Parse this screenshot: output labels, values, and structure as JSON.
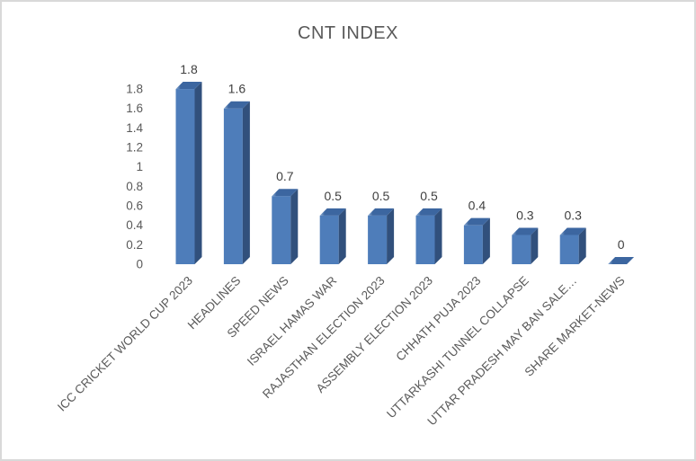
{
  "window": {
    "background": "#FFFFFF",
    "border_color": "#D9D9D9"
  },
  "chart_data": {
    "type": "bar",
    "style": "3d-column",
    "title": "CNT INDEX",
    "categories": [
      "ICC CRICKET WORLD CUP 2023",
      "HEADLINES",
      "SPEED NEWS",
      "ISRAEL HAMAS WAR",
      "RAJASTHAN ELECTION 2023",
      "ASSEMBLY ELECTION 2023",
      "CHHATH PUJA 2023",
      "UTTARKASHI TUNNEL COLLAPSE",
      "UTTAR PRADESH MAY BAN SALE…",
      "SHARE MARKET-NEWS"
    ],
    "values": [
      1.8,
      1.6,
      0.7,
      0.5,
      0.5,
      0.5,
      0.4,
      0.3,
      0.3,
      0
    ],
    "data_labels": [
      "1.8",
      "1.6",
      "0.7",
      "0.5",
      "0.5",
      "0.5",
      "0.4",
      "0.3",
      "0.3",
      "0"
    ],
    "xlabel": "",
    "ylabel": "",
    "ylim": [
      0,
      1.8
    ],
    "y_ticks": [
      "0",
      "0.2",
      "0.4",
      "0.6",
      "0.8",
      "1",
      "1.2",
      "1.4",
      "1.6",
      "1.8"
    ],
    "gridlines": false,
    "legend": "none",
    "category_label_rotation_deg": -45,
    "colors": {
      "bar_front": "#4E7DBA",
      "bar_side": "#31507C",
      "bar_top": "#3C66A0",
      "bar_top_highlight": "#8FAFD6",
      "title_text": "#595959",
      "axis_text": "#595959",
      "data_label_text": "#404040"
    }
  }
}
